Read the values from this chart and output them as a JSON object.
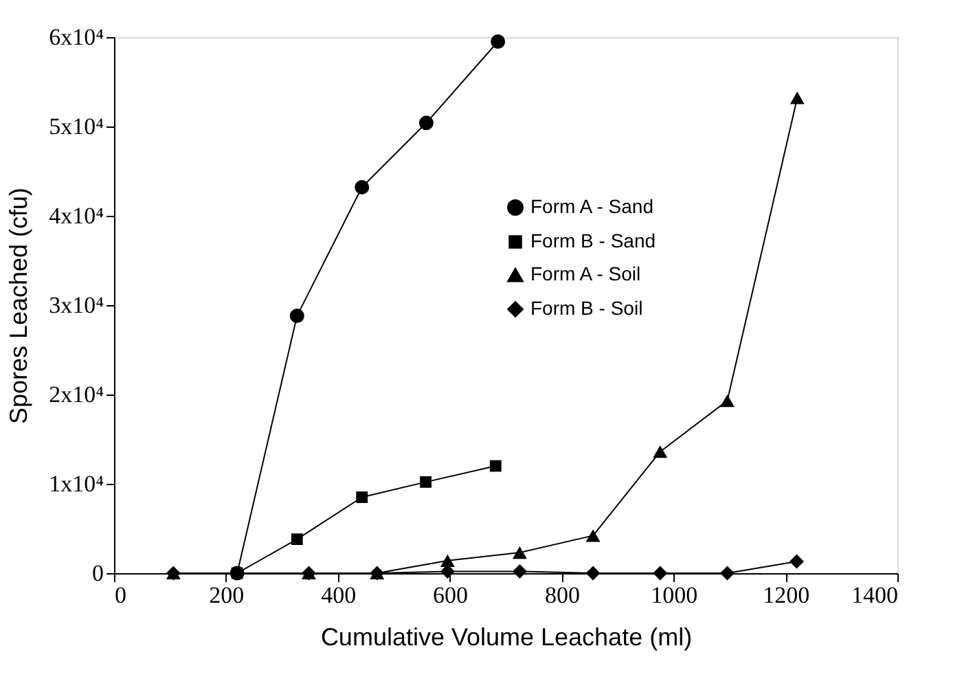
{
  "chart_data": {
    "type": "line",
    "xlabel": "Cumulative Volume Leachate (ml)",
    "ylabel": "Spores Leached (cfu)",
    "xlim": [
      0,
      1400
    ],
    "xticks": [
      0,
      200,
      400,
      600,
      800,
      1000,
      1200,
      1400
    ],
    "ylim": [
      0,
      60000
    ],
    "yticks": [
      {
        "value": 0,
        "label": "0"
      },
      {
        "value": 10000,
        "label": "1x10⁴"
      },
      {
        "value": 20000,
        "label": "2x10⁴"
      },
      {
        "value": 30000,
        "label": "3x10⁴"
      },
      {
        "value": 40000,
        "label": "4x10⁴"
      },
      {
        "value": 50000,
        "label": "5x10⁴"
      },
      {
        "value": 60000,
        "label": "6x10⁴"
      }
    ],
    "grid": false,
    "legend": "right",
    "line_style": "solid",
    "series": [
      {
        "name": "Form A - Sand",
        "color": "#000000",
        "marker": "circle",
        "x": [
          220,
          327,
          443,
          558,
          686
        ],
        "values": [
          0,
          28800,
          43200,
          50400,
          59500
        ]
      },
      {
        "name": "Form B - Sand",
        "color": "#000000",
        "marker": "square",
        "x": [
          220,
          327,
          443,
          557,
          682
        ],
        "values": [
          0,
          3800,
          8500,
          10200,
          12000
        ]
      },
      {
        "name": "Form A - Soil",
        "color": "#000000",
        "marker": "triangle",
        "x": [
          106,
          348,
          470,
          596,
          725,
          856,
          976,
          1096,
          1221
        ],
        "values": [
          0,
          0,
          0,
          1400,
          2300,
          4200,
          13600,
          19300,
          53200
        ]
      },
      {
        "name": "Form B - Soil",
        "color": "#000000",
        "marker": "diamond",
        "x": [
          106,
          348,
          470,
          596,
          725,
          856,
          976,
          1096,
          1220
        ],
        "values": [
          0,
          0,
          0,
          200,
          200,
          0,
          0,
          0,
          1300
        ]
      }
    ]
  }
}
